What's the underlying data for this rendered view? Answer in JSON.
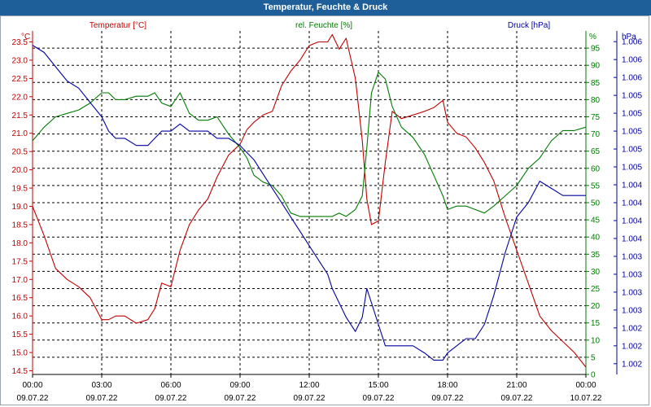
{
  "window": {
    "title": "Temperatur, Feuchte & Druck"
  },
  "colors": {
    "temperature": "#c00000",
    "humidity": "#007a00",
    "pressure": "#0000a0",
    "grid": "#000000",
    "title_bar": "#1e5f9a"
  },
  "chart_data": {
    "type": "line",
    "title": "Temperatur, Feuchte & Druck",
    "grid": true,
    "x_ticks": [
      {
        "time": "00:00",
        "date": "09.07.22"
      },
      {
        "time": "03:00",
        "date": "09.07.22"
      },
      {
        "time": "06:00",
        "date": "09.07.22"
      },
      {
        "time": "09:00",
        "date": "09.07.22"
      },
      {
        "time": "12:00",
        "date": "09.07.22"
      },
      {
        "time": "15:00",
        "date": "09.07.22"
      },
      {
        "time": "18:00",
        "date": "09.07.22"
      },
      {
        "time": "21:00",
        "date": "09.07.22"
      },
      {
        "time": "00:00",
        "date": "10.07.22"
      }
    ],
    "axes": {
      "temperature": {
        "label": "Temperatur [°C]",
        "unit": "°C",
        "range": [
          14.4,
          23.8
        ],
        "ticks": [
          "23.5",
          "23.0",
          "22.5",
          "22.0",
          "21.5",
          "21.0",
          "20.5",
          "20.0",
          "19.5",
          "19.0",
          "18.5",
          "18.0",
          "17.5",
          "17.0",
          "16.5",
          "16.0",
          "15.5",
          "15.0",
          "14.5"
        ],
        "tick_values": [
          23.5,
          23.0,
          22.5,
          22.0,
          21.5,
          21.0,
          20.5,
          20.0,
          19.5,
          19.0,
          18.5,
          18.0,
          17.5,
          17.0,
          16.5,
          16.0,
          15.5,
          15.0,
          14.5
        ]
      },
      "humidity": {
        "label": "rel. Feuchte [%]",
        "unit": "%",
        "range": [
          0,
          100
        ],
        "ticks": [
          "95",
          "90",
          "85",
          "80",
          "75",
          "70",
          "65",
          "60",
          "55",
          "50",
          "45",
          "40",
          "35",
          "30",
          "25",
          "20",
          "15",
          "10",
          "5",
          "0"
        ],
        "tick_values": [
          95,
          90,
          85,
          80,
          75,
          70,
          65,
          60,
          55,
          50,
          45,
          40,
          35,
          30,
          25,
          20,
          15,
          10,
          5,
          0
        ]
      },
      "pressure": {
        "label": "Druck [hPa]",
        "unit": "hPa",
        "range": [
          1001.6,
          1006.4
        ],
        "ticks": [
          "1.006",
          "1.006",
          "1.006",
          "1.005",
          "1.005",
          "1.005",
          "1.005",
          "1.005",
          "1.004",
          "1.004",
          "1.004",
          "1.004",
          "1.003",
          "1.003",
          "1.003",
          "1.003",
          "1.002",
          "1.002",
          "1.002"
        ],
        "tick_values": [
          1006.25,
          1006.0,
          1005.75,
          1005.5,
          1005.25,
          1005.0,
          1004.75,
          1004.5,
          1004.25,
          1004.0,
          1003.75,
          1003.5,
          1003.25,
          1003.0,
          1002.75,
          1002.5,
          1002.25,
          1002.0,
          1001.75
        ]
      }
    },
    "series": [
      {
        "name": "Temperatur [°C]",
        "axis": "temperature",
        "x": [
          0.0,
          0.5,
          1.0,
          1.5,
          2.0,
          2.5,
          3.0,
          3.3,
          3.6,
          4.0,
          4.5,
          5.0,
          5.3,
          5.6,
          6.0,
          6.4,
          6.8,
          7.2,
          7.6,
          8.0,
          8.5,
          9.0,
          9.3,
          9.6,
          10.0,
          10.4,
          10.8,
          11.2,
          11.6,
          12.0,
          12.4,
          12.8,
          13.0,
          13.3,
          13.6,
          14.0,
          14.3,
          14.5,
          14.7,
          15.0,
          15.3,
          15.6,
          16.0,
          16.5,
          17.0,
          17.4,
          17.8,
          18.0,
          18.4,
          18.8,
          19.2,
          19.6,
          20.0,
          20.5,
          21.0,
          21.5,
          22.0,
          22.5,
          23.0,
          23.5,
          24.0
        ],
        "y": [
          19.0,
          18.2,
          17.3,
          17.0,
          16.8,
          16.5,
          15.9,
          15.9,
          16.0,
          16.0,
          15.8,
          15.9,
          16.2,
          16.9,
          16.8,
          17.8,
          18.5,
          18.9,
          19.2,
          19.8,
          20.4,
          20.7,
          21.1,
          21.3,
          21.5,
          21.6,
          22.3,
          22.7,
          23.0,
          23.4,
          23.5,
          23.5,
          23.7,
          23.3,
          23.6,
          22.5,
          20.8,
          19.2,
          18.5,
          18.6,
          20.2,
          21.6,
          21.4,
          21.5,
          21.6,
          21.7,
          21.9,
          21.3,
          21.0,
          20.9,
          20.6,
          20.2,
          19.7,
          18.7,
          17.8,
          16.9,
          16.0,
          15.6,
          15.3,
          15.0,
          14.6
        ]
      },
      {
        "name": "rel. Feuchte [%]",
        "axis": "humidity",
        "x": [
          0.0,
          0.5,
          1.0,
          1.5,
          2.0,
          2.5,
          3.0,
          3.3,
          3.6,
          4.0,
          4.5,
          5.0,
          5.3,
          5.6,
          6.0,
          6.4,
          6.8,
          7.2,
          7.6,
          8.0,
          8.5,
          9.0,
          9.3,
          9.6,
          10.0,
          10.4,
          10.8,
          11.2,
          11.6,
          12.0,
          12.4,
          12.8,
          13.0,
          13.3,
          13.6,
          14.0,
          14.3,
          14.5,
          14.7,
          15.0,
          15.3,
          15.6,
          16.0,
          16.5,
          17.0,
          17.4,
          17.8,
          18.0,
          18.4,
          18.8,
          19.2,
          19.6,
          20.0,
          20.5,
          21.0,
          21.5,
          22.0,
          22.5,
          23.0,
          23.5,
          24.0
        ],
        "y": [
          68,
          72,
          75,
          76,
          77,
          79,
          82,
          82,
          80,
          80,
          81,
          81,
          82,
          79,
          78,
          82,
          76,
          74,
          74,
          75,
          70,
          66,
          63,
          58,
          56,
          55,
          52,
          47,
          46,
          46,
          46,
          46,
          46,
          47,
          46,
          48,
          52,
          66,
          82,
          88,
          86,
          78,
          72,
          69,
          64,
          58,
          52,
          48,
          49,
          49,
          48,
          47,
          49,
          52,
          55,
          60,
          63,
          68,
          71,
          71,
          72
        ]
      },
      {
        "name": "Druck [hPa]",
        "axis": "pressure",
        "x": [
          0.0,
          0.5,
          1.0,
          1.5,
          2.0,
          2.5,
          3.0,
          3.3,
          3.6,
          4.0,
          4.5,
          5.0,
          5.3,
          5.6,
          6.0,
          6.4,
          6.8,
          7.2,
          7.6,
          8.0,
          8.5,
          9.0,
          9.3,
          9.6,
          10.0,
          10.4,
          10.8,
          11.2,
          11.6,
          12.0,
          12.4,
          12.8,
          13.0,
          13.3,
          13.6,
          14.0,
          14.3,
          14.5,
          14.7,
          15.0,
          15.3,
          15.6,
          16.0,
          16.5,
          17.0,
          17.4,
          17.8,
          18.0,
          18.4,
          18.8,
          19.2,
          19.6,
          20.0,
          20.5,
          21.0,
          21.5,
          22.0,
          22.5,
          23.0,
          23.5,
          24.0
        ],
        "y": [
          1006.2,
          1006.1,
          1005.9,
          1005.7,
          1005.6,
          1005.4,
          1005.2,
          1005.0,
          1004.9,
          1004.9,
          1004.8,
          1004.8,
          1004.9,
          1005.0,
          1005.0,
          1005.1,
          1005.0,
          1005.0,
          1005.0,
          1004.9,
          1004.9,
          1004.8,
          1004.7,
          1004.6,
          1004.4,
          1004.2,
          1004.0,
          1003.8,
          1003.6,
          1003.4,
          1003.2,
          1003.0,
          1002.8,
          1002.6,
          1002.4,
          1002.2,
          1002.4,
          1002.8,
          1002.6,
          1002.3,
          1002.0,
          1002.0,
          1002.0,
          1002.0,
          1001.9,
          1001.8,
          1001.8,
          1001.9,
          1002.0,
          1002.1,
          1002.1,
          1002.3,
          1002.7,
          1003.3,
          1003.8,
          1004.0,
          1004.3,
          1004.2,
          1004.1,
          1004.1,
          1004.1
        ]
      }
    ]
  }
}
